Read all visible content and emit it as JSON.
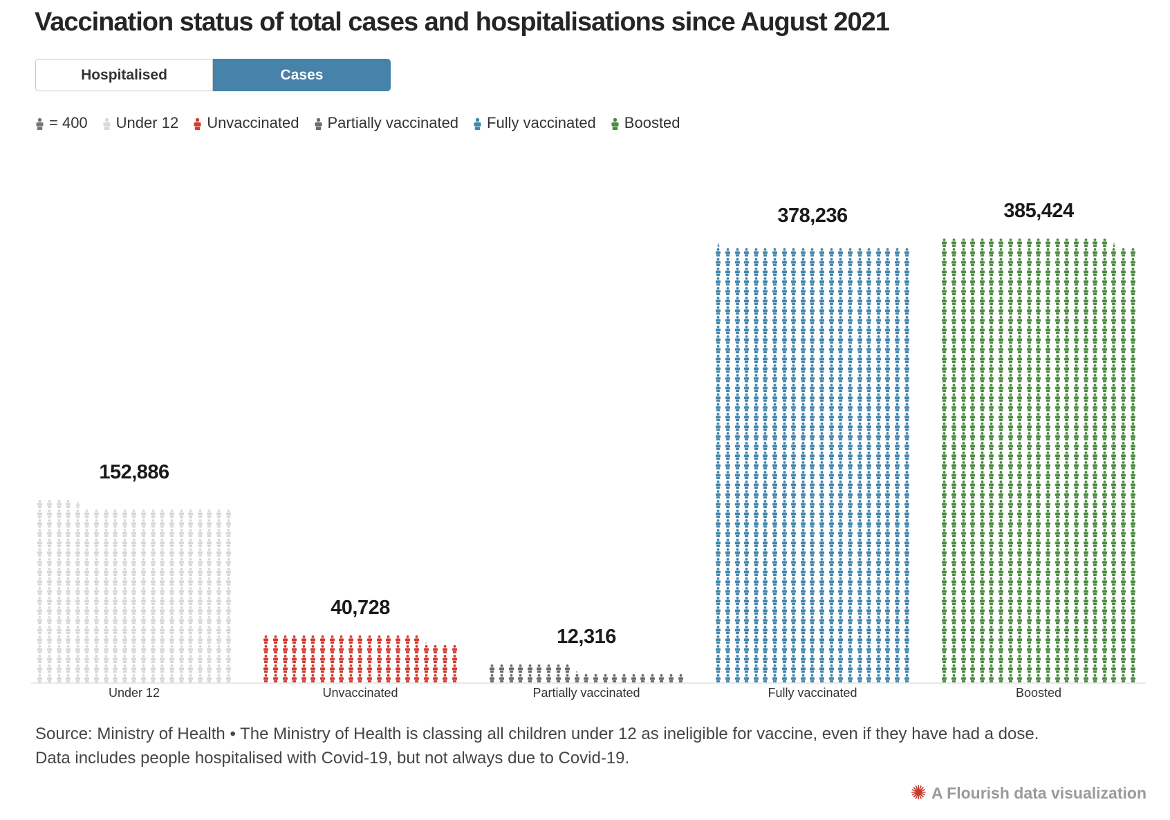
{
  "title": "Vaccination status of total cases and hospitalisations since August 2021",
  "tabs": [
    {
      "label": "Hospitalised",
      "active": false
    },
    {
      "label": "Cases",
      "active": true
    }
  ],
  "tab_active_color": "#4682a9",
  "legend": {
    "unit_item": {
      "label": "= 400",
      "color": "#757575"
    },
    "items": [
      {
        "label": "Under 12",
        "color": "#d8d8d8"
      },
      {
        "label": "Unvaccinated",
        "color": "#d23b30"
      },
      {
        "label": "Partially vaccinated",
        "color": "#6b6b6b"
      },
      {
        "label": "Fully vaccinated",
        "color": "#4186ad"
      },
      {
        "label": "Boosted",
        "color": "#4a8c3f"
      }
    ]
  },
  "chart_data": {
    "type": "pictogram",
    "title": "Vaccination status of total cases and hospitalisations since August 2021",
    "unit_per_icon": 400,
    "columns_per_block": 21,
    "categories": [
      "Under 12",
      "Unvaccinated",
      "Partially vaccinated",
      "Fully vaccinated",
      "Boosted"
    ],
    "values": [
      152886,
      40728,
      12316,
      378236,
      385424
    ],
    "value_labels": [
      "152,886",
      "40,728",
      "12,316",
      "378,236",
      "385,424"
    ],
    "colors": [
      "#d8d8d8",
      "#d23b30",
      "#6b6b6b",
      "#4186ad",
      "#4a8c3f"
    ],
    "selected_series": "Cases",
    "baseline": true,
    "legend_position": "top"
  },
  "footer": {
    "line1": "Source: Ministry of Health • The Ministry of Health is classing all children under 12 as ineligible for vaccine, even if they have had a dose.",
    "line2": "Data includes people hospitalised with Covid-19, but not always due to Covid-19."
  },
  "credit": {
    "label": "A Flourish data visualization",
    "star_color": "#c23b2d"
  }
}
